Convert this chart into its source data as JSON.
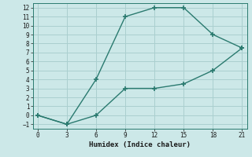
{
  "line1_x": [
    0,
    3,
    6,
    9,
    12,
    15,
    18,
    21
  ],
  "line1_y": [
    0,
    -1,
    4,
    11,
    12,
    12,
    9,
    7.5
  ],
  "line2_x": [
    0,
    3,
    6,
    9,
    12,
    15,
    18,
    21
  ],
  "line2_y": [
    0,
    -1,
    0,
    3,
    3,
    3.5,
    5,
    7.5
  ],
  "line_color": "#2a7a6f",
  "bg_color": "#cce8e8",
  "grid_color": "#aacfcf",
  "xlabel": "Humidex (Indice chaleur)",
  "xlim": [
    -0.5,
    21.5
  ],
  "ylim": [
    -1.5,
    12.5
  ],
  "xticks": [
    0,
    3,
    6,
    9,
    12,
    15,
    18,
    21
  ],
  "yticks": [
    -1,
    0,
    1,
    2,
    3,
    4,
    5,
    6,
    7,
    8,
    9,
    10,
    11,
    12
  ],
  "marker": "+",
  "marker_size": 5,
  "linewidth": 1.0
}
